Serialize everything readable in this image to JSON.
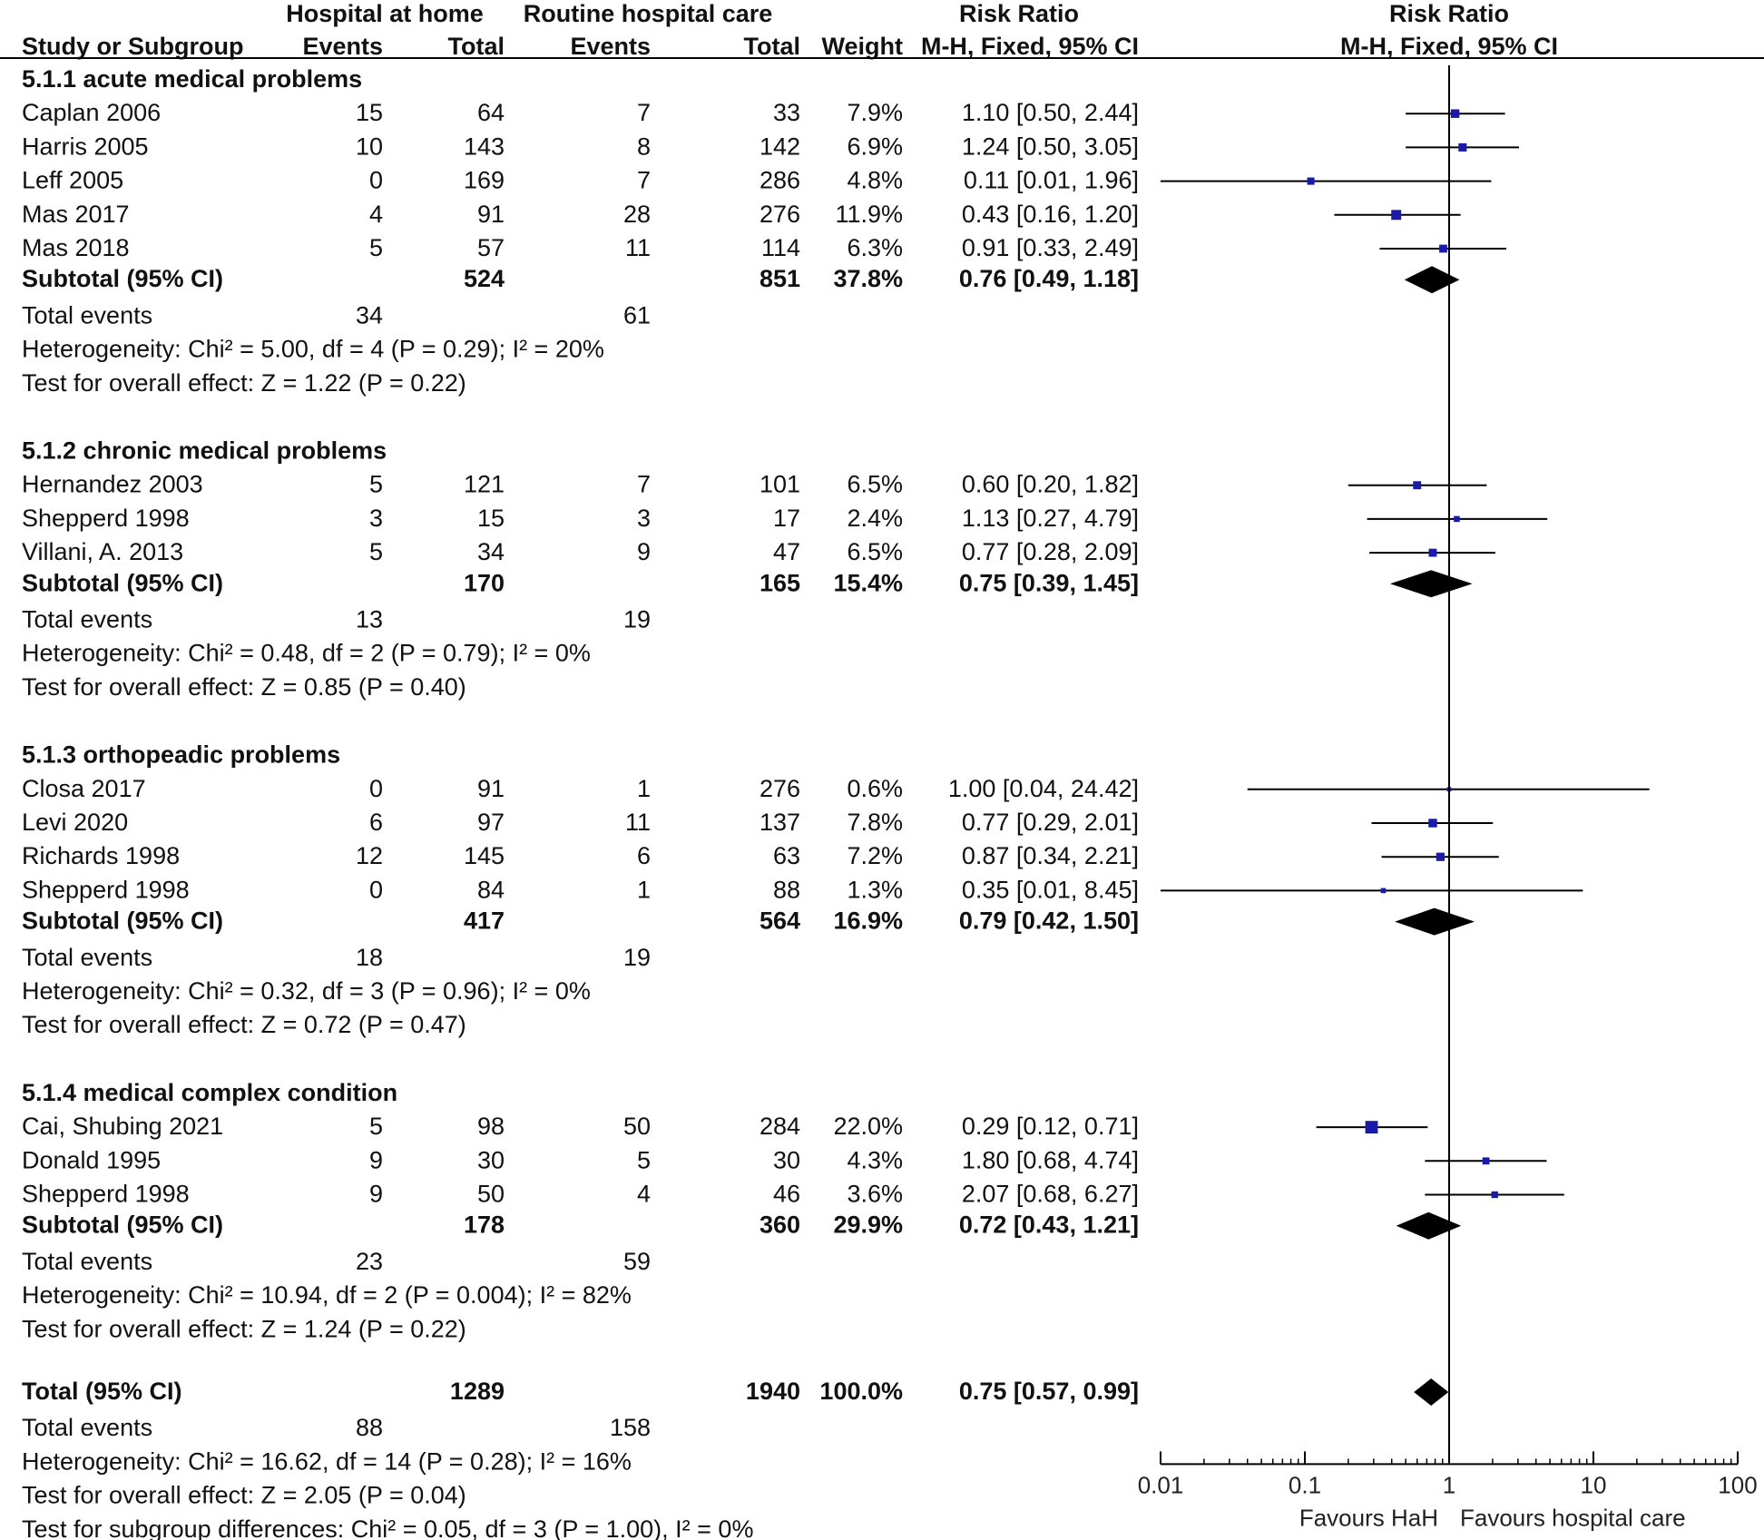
{
  "chart_data": {
    "type": "forest",
    "headers": {
      "group1": "Hospital at home",
      "group2": "Routine hospital care",
      "rr": "Risk Ratio",
      "rr_plot": "Risk Ratio",
      "study": "Study or Subgroup",
      "g1_events": "Events",
      "g1_total": "Total",
      "g2_events": "Events",
      "g2_total": "Total",
      "weight": "Weight",
      "method": "M-H, Fixed, 95% CI",
      "method_plot": "M-H, Fixed, 95% CI"
    },
    "subgroups": [
      {
        "label": "5.1.1 acute medical problems",
        "studies": [
          {
            "name": "Caplan 2006",
            "e1": "15",
            "n1": "64",
            "e2": "7",
            "n2": "33",
            "weight": "7.9%",
            "ci": "1.10 [0.50, 2.44]",
            "rr": 1.1,
            "lo": 0.5,
            "hi": 2.44,
            "w": 7.9
          },
          {
            "name": "Harris 2005",
            "e1": "10",
            "n1": "143",
            "e2": "8",
            "n2": "142",
            "weight": "6.9%",
            "ci": "1.24 [0.50, 3.05]",
            "rr": 1.24,
            "lo": 0.5,
            "hi": 3.05,
            "w": 6.9
          },
          {
            "name": "Leff 2005",
            "e1": "0",
            "n1": "169",
            "e2": "7",
            "n2": "286",
            "weight": "4.8%",
            "ci": "0.11 [0.01, 1.96]",
            "rr": 0.11,
            "lo": 0.01,
            "hi": 1.96,
            "w": 4.8
          },
          {
            "name": "Mas 2017",
            "e1": "4",
            "n1": "91",
            "e2": "28",
            "n2": "276",
            "weight": "11.9%",
            "ci": "0.43 [0.16, 1.20]",
            "rr": 0.43,
            "lo": 0.16,
            "hi": 1.2,
            "w": 11.9
          },
          {
            "name": "Mas 2018",
            "e1": "5",
            "n1": "57",
            "e2": "11",
            "n2": "114",
            "weight": "6.3%",
            "ci": "0.91 [0.33, 2.49]",
            "rr": 0.91,
            "lo": 0.33,
            "hi": 2.49,
            "w": 6.3
          }
        ],
        "subtotal": {
          "label": "Subtotal (95% CI)",
          "n1": "524",
          "n2": "851",
          "weight": "37.8%",
          "ci": "0.76 [0.49, 1.18]",
          "rr": 0.76,
          "lo": 0.49,
          "hi": 1.18
        },
        "total_events": {
          "label": "Total events",
          "e1": "34",
          "e2": "61"
        },
        "heterogeneity": "Heterogeneity: Chi² = 5.00, df = 4 (P = 0.29); I² = 20%",
        "overall": "Test for overall effect: Z = 1.22 (P = 0.22)"
      },
      {
        "label": "5.1.2 chronic medical problems",
        "studies": [
          {
            "name": "Hernandez 2003",
            "e1": "5",
            "n1": "121",
            "e2": "7",
            "n2": "101",
            "weight": "6.5%",
            "ci": "0.60 [0.20, 1.82]",
            "rr": 0.6,
            "lo": 0.2,
            "hi": 1.82,
            "w": 6.5
          },
          {
            "name": "Shepperd 1998",
            "e1": "3",
            "n1": "15",
            "e2": "3",
            "n2": "17",
            "weight": "2.4%",
            "ci": "1.13 [0.27, 4.79]",
            "rr": 1.13,
            "lo": 0.27,
            "hi": 4.79,
            "w": 2.4
          },
          {
            "name": "Villani, A. 2013",
            "e1": "5",
            "n1": "34",
            "e2": "9",
            "n2": "47",
            "weight": "6.5%",
            "ci": "0.77 [0.28, 2.09]",
            "rr": 0.77,
            "lo": 0.28,
            "hi": 2.09,
            "w": 6.5
          }
        ],
        "subtotal": {
          "label": "Subtotal (95% CI)",
          "n1": "170",
          "n2": "165",
          "weight": "15.4%",
          "ci": "0.75 [0.39, 1.45]",
          "rr": 0.75,
          "lo": 0.39,
          "hi": 1.45
        },
        "total_events": {
          "label": "Total events",
          "e1": "13",
          "e2": "19"
        },
        "heterogeneity": "Heterogeneity: Chi² = 0.48, df = 2 (P = 0.79); I² = 0%",
        "overall": "Test for overall effect: Z = 0.85 (P = 0.40)"
      },
      {
        "label": "5.1.3 orthopeadic problems",
        "studies": [
          {
            "name": "Closa 2017",
            "e1": "0",
            "n1": "91",
            "e2": "1",
            "n2": "276",
            "weight": "0.6%",
            "ci": "1.00 [0.04, 24.42]",
            "rr": 1.0,
            "lo": 0.04,
            "hi": 24.42,
            "w": 0.6
          },
          {
            "name": "Levi 2020",
            "e1": "6",
            "n1": "97",
            "e2": "11",
            "n2": "137",
            "weight": "7.8%",
            "ci": "0.77 [0.29, 2.01]",
            "rr": 0.77,
            "lo": 0.29,
            "hi": 2.01,
            "w": 7.8
          },
          {
            "name": "Richards 1998",
            "e1": "12",
            "n1": "145",
            "e2": "6",
            "n2": "63",
            "weight": "7.2%",
            "ci": "0.87 [0.34, 2.21]",
            "rr": 0.87,
            "lo": 0.34,
            "hi": 2.21,
            "w": 7.2
          },
          {
            "name": "Shepperd 1998",
            "e1": "0",
            "n1": "84",
            "e2": "1",
            "n2": "88",
            "weight": "1.3%",
            "ci": "0.35 [0.01, 8.45]",
            "rr": 0.35,
            "lo": 0.01,
            "hi": 8.45,
            "w": 1.3
          }
        ],
        "subtotal": {
          "label": "Subtotal (95% CI)",
          "n1": "417",
          "n2": "564",
          "weight": "16.9%",
          "ci": "0.79 [0.42, 1.50]",
          "rr": 0.79,
          "lo": 0.42,
          "hi": 1.5
        },
        "total_events": {
          "label": "Total events",
          "e1": "18",
          "e2": "19"
        },
        "heterogeneity": "Heterogeneity: Chi² = 0.32, df = 3 (P = 0.96); I² = 0%",
        "overall": "Test for overall effect: Z = 0.72 (P = 0.47)"
      },
      {
        "label": "5.1.4 medical complex condition",
        "studies": [
          {
            "name": "Cai, Shubing 2021",
            "e1": "5",
            "n1": "98",
            "e2": "50",
            "n2": "284",
            "weight": "22.0%",
            "ci": "0.29 [0.12, 0.71]",
            "rr": 0.29,
            "lo": 0.12,
            "hi": 0.71,
            "w": 22.0
          },
          {
            "name": "Donald 1995",
            "e1": "9",
            "n1": "30",
            "e2": "5",
            "n2": "30",
            "weight": "4.3%",
            "ci": "1.80 [0.68, 4.74]",
            "rr": 1.8,
            "lo": 0.68,
            "hi": 4.74,
            "w": 4.3
          },
          {
            "name": "Shepperd 1998",
            "e1": "9",
            "n1": "50",
            "e2": "4",
            "n2": "46",
            "weight": "3.6%",
            "ci": "2.07 [0.68, 6.27]",
            "rr": 2.07,
            "lo": 0.68,
            "hi": 6.27,
            "w": 3.6
          }
        ],
        "subtotal": {
          "label": "Subtotal (95% CI)",
          "n1": "178",
          "n2": "360",
          "weight": "29.9%",
          "ci": "0.72 [0.43, 1.21]",
          "rr": 0.72,
          "lo": 0.43,
          "hi": 1.21
        },
        "total_events": {
          "label": "Total events",
          "e1": "23",
          "e2": "59"
        },
        "heterogeneity": "Heterogeneity: Chi² = 10.94, df = 2 (P = 0.004); I² = 82%",
        "overall": "Test for overall effect: Z = 1.24 (P = 0.22)"
      }
    ],
    "total": {
      "label": "Total (95% CI)",
      "n1": "1289",
      "n2": "1940",
      "weight": "100.0%",
      "ci": "0.75 [0.57, 0.99]",
      "rr": 0.75,
      "lo": 0.57,
      "hi": 0.99
    },
    "total_events": {
      "label": "Total events",
      "e1": "88",
      "e2": "158"
    },
    "heterogeneity": "Heterogeneity: Chi² = 16.62, df = 14 (P = 0.28); I² = 16%",
    "overall": "Test for overall effect: Z = 2.05 (P = 0.04)",
    "subgroup_diff": "Test for subgroup differences: Chi² = 0.05, df = 3 (P = 1.00), I² = 0%",
    "x_axis": {
      "scale": "log",
      "range": [
        0.01,
        100
      ],
      "ticks": [
        0.01,
        0.1,
        1,
        10,
        100
      ],
      "tick_labels": [
        "0.01",
        "0.1",
        "1",
        "10",
        "100"
      ]
    },
    "favours_left": "Favours HaH",
    "favours_right": "Favours hospital care",
    "colors": {
      "study_marker": "#1a1aa8",
      "summary_diamond": "#000000",
      "lines": "#000000"
    }
  }
}
